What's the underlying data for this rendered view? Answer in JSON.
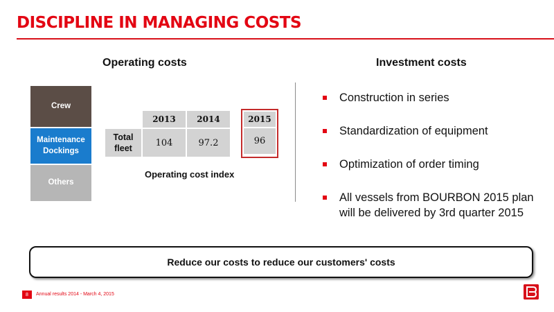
{
  "title": "DISCIPLINE IN MANAGING COSTS",
  "operating": {
    "heading": "Operating costs",
    "categories": [
      "Crew",
      "Maintenance Dockings",
      "Others"
    ],
    "table": {
      "years": [
        "2013",
        "2014",
        "2015"
      ],
      "row_label": "Total fleet",
      "values": [
        "104",
        "97.2",
        "96"
      ]
    },
    "caption": "Operating cost index"
  },
  "investment": {
    "heading": "Investment costs",
    "bullets": [
      "Construction in series",
      "Standardization of equipment",
      "Optimization of order timing",
      "All vessels from BOURBON 2015 plan will be delivered by 3rd quarter 2015"
    ]
  },
  "banner": "Reduce our costs to reduce our customers' costs",
  "footer": {
    "page_number": "8",
    "text": "Annual results 2014 - March 4, 2015"
  },
  "colors": {
    "accent_red": "#e30613",
    "crew_brown": "#5b4d46",
    "maintenance_blue": "#1a7ccd",
    "others_gray": "#b6b6b6"
  },
  "icons": {
    "logo": "bourbon-logo-icon",
    "bullet": "red-square-bullet-icon"
  }
}
